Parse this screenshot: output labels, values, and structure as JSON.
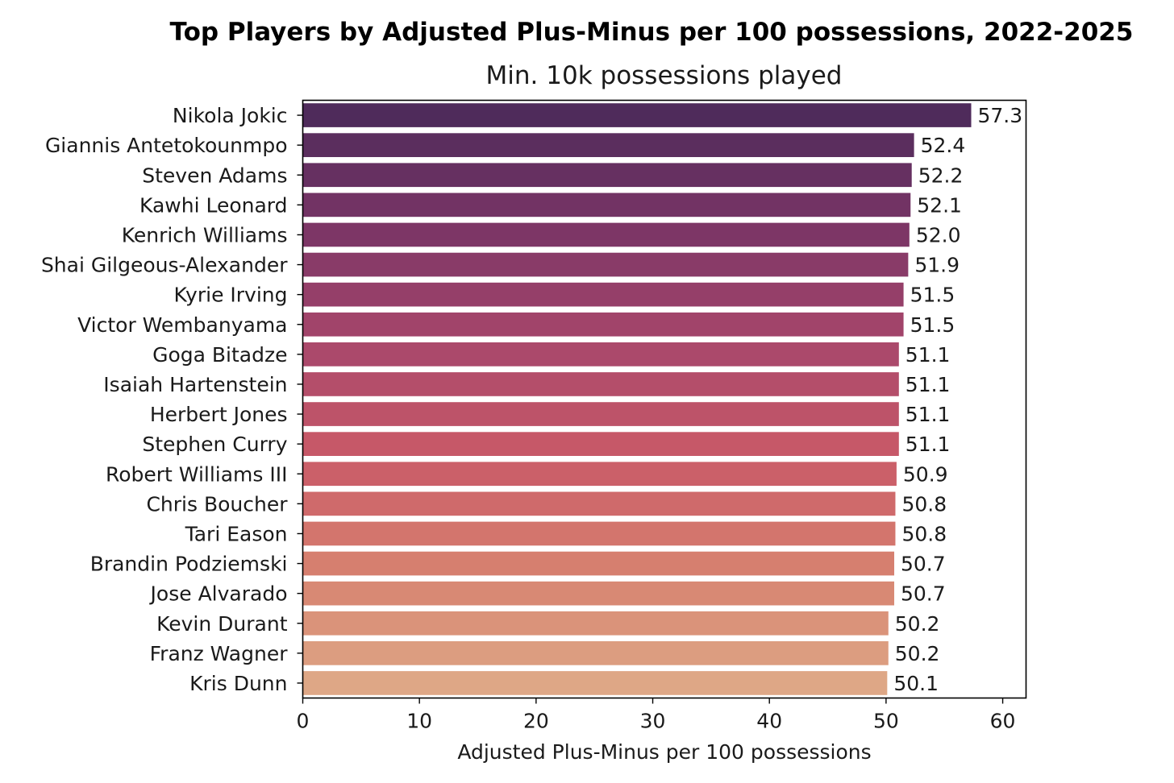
{
  "chart_data": {
    "type": "bar",
    "orientation": "horizontal",
    "title": "Top Players by Adjusted Plus-Minus per 100 possessions, 2022-2025",
    "subtitle": "Min. 10k possessions played",
    "xlabel": "Adjusted Plus-Minus per 100 possessions",
    "ylabel": "",
    "xlim": [
      0,
      62
    ],
    "xticks": [
      0,
      10,
      20,
      30,
      40,
      50,
      60
    ],
    "grid": false,
    "legend": "none",
    "colormap": "flare",
    "color_start": "#4f2b5b",
    "color_end": "#dea786",
    "categories": [
      "Nikola Jokic",
      "Giannis Antetokounmpo",
      "Steven Adams",
      "Kawhi Leonard",
      "Kenrich Williams",
      "Shai Gilgeous-Alexander",
      "Kyrie Irving",
      "Victor Wembanyama",
      "Goga Bitadze",
      "Isaiah Hartenstein",
      "Herbert Jones",
      "Stephen Curry",
      "Robert Williams III",
      "Chris Boucher",
      "Tari Eason",
      "Brandin Podziemski",
      "Jose Alvarado",
      "Kevin Durant",
      "Franz Wagner",
      "Kris Dunn"
    ],
    "values": [
      57.3,
      52.4,
      52.2,
      52.1,
      52.0,
      51.9,
      51.5,
      51.5,
      51.1,
      51.1,
      51.1,
      51.1,
      50.9,
      50.8,
      50.8,
      50.7,
      50.7,
      50.2,
      50.2,
      50.1
    ],
    "value_labels": [
      "57.3",
      "52.4",
      "52.2",
      "52.1",
      "52.0",
      "51.9",
      "51.5",
      "51.5",
      "51.1",
      "51.1",
      "51.1",
      "51.1",
      "50.9",
      "50.8",
      "50.8",
      "50.7",
      "50.7",
      "50.2",
      "50.2",
      "50.1"
    ]
  }
}
